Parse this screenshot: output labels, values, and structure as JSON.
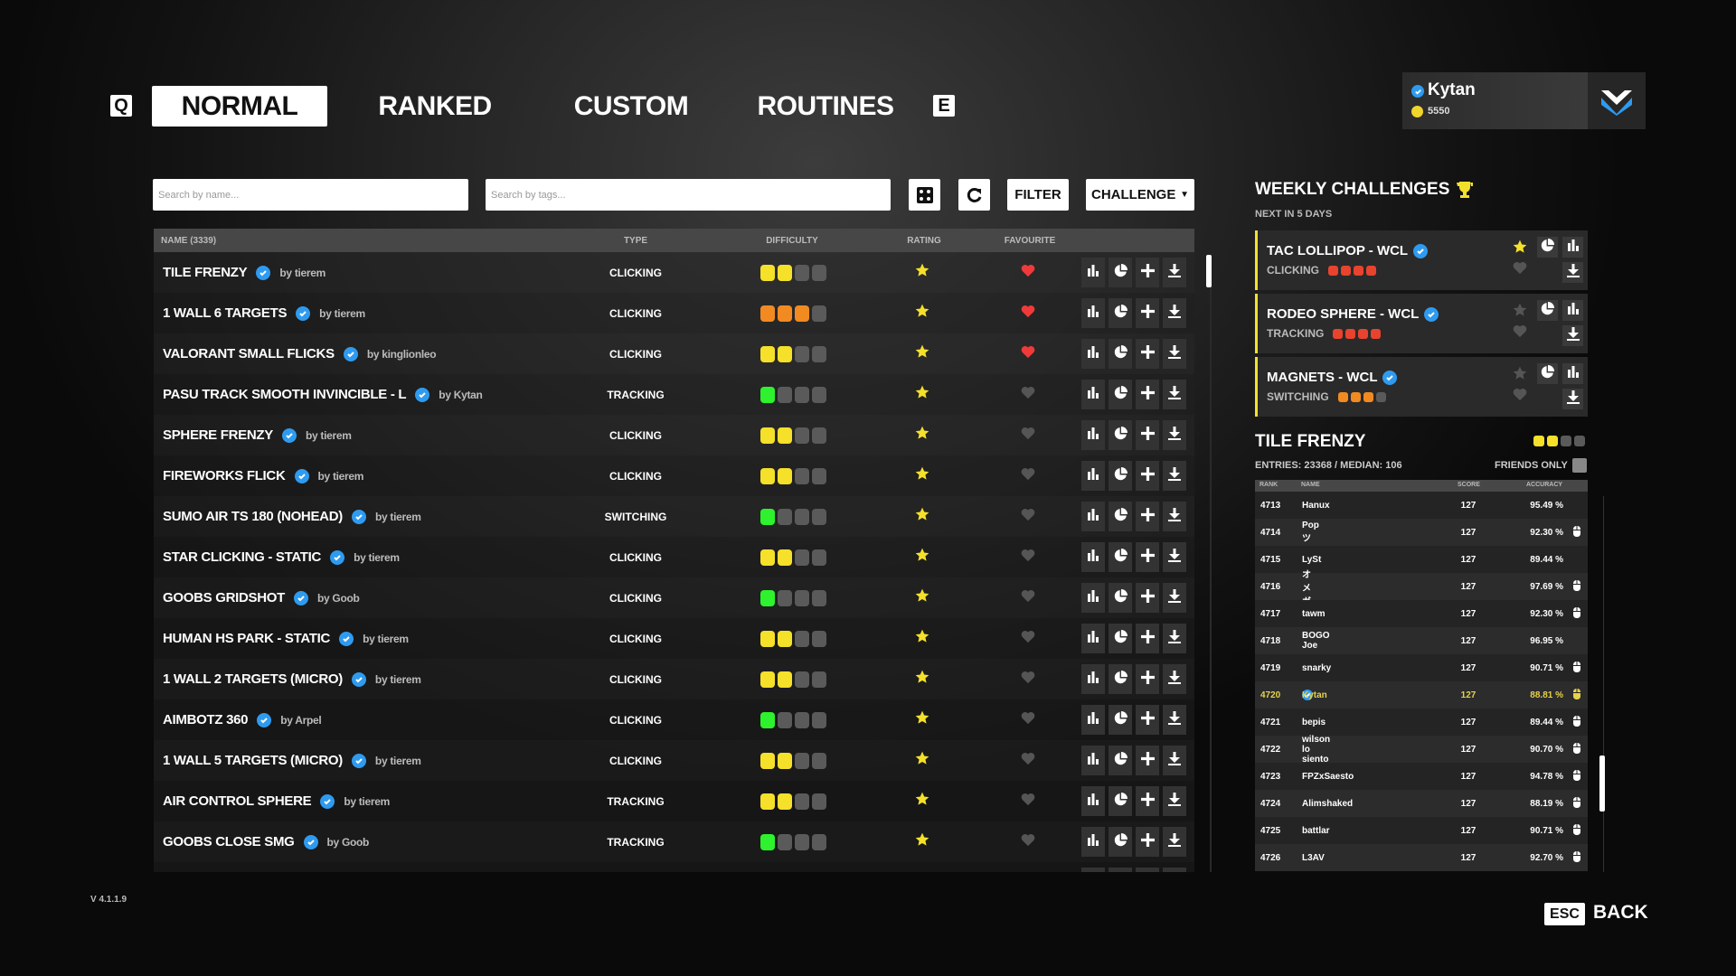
{
  "nav": {
    "prev_key": "Q",
    "next_key": "E",
    "tabs": [
      {
        "label": "NORMAL",
        "active": true
      },
      {
        "label": "RANKED"
      },
      {
        "label": "CUSTOM"
      },
      {
        "label": "ROUTINES"
      }
    ]
  },
  "profile": {
    "username": "Kytan",
    "verified": true,
    "currency": "5550",
    "logo": "aimlabs-style-w-logo"
  },
  "toolbar": {
    "search_name_placeholder": "Search by name...",
    "search_tags_placeholder": "Search by tags...",
    "random_icon": "dice-icon",
    "refresh_icon": "refresh-icon",
    "filter_label": "FILTER",
    "sort_value": "CHALLENGE"
  },
  "table": {
    "columns": {
      "name": "NAME (3339)",
      "type": "TYPE",
      "difficulty": "DIFFICULTY",
      "rating": "RATING",
      "favourite": "FAVOURITE"
    },
    "difficulty_colors": {
      "1": "#2df22d",
      "2": "#f5e02a",
      "3": "#f28a22",
      "4": "#e8432e",
      "empty": "#5a5a5a"
    },
    "rows": [
      {
        "name": "TILE FRENZY",
        "author": "by tierem",
        "type": "CLICKING",
        "difficulty": 2,
        "favourite": true
      },
      {
        "name": "1 WALL 6 TARGETS",
        "author": "by tierem",
        "type": "CLICKING",
        "difficulty": 3,
        "favourite": true
      },
      {
        "name": "VALORANT SMALL FLICKS",
        "author": "by kinglionleo",
        "type": "CLICKING",
        "difficulty": 2,
        "favourite": true
      },
      {
        "name": "PASU TRACK SMOOTH INVINCIBLE - L",
        "author": "by Kytan",
        "type": "TRACKING",
        "difficulty": 1,
        "favourite": false
      },
      {
        "name": "SPHERE FRENZY",
        "author": "by tierem",
        "type": "CLICKING",
        "difficulty": 2,
        "favourite": false
      },
      {
        "name": "FIREWORKS FLICK",
        "author": "by tierem",
        "type": "CLICKING",
        "difficulty": 2,
        "favourite": false
      },
      {
        "name": "SUMO AIR TS 180 (NOHEAD)",
        "author": "by tierem",
        "type": "SWITCHING",
        "difficulty": 1,
        "favourite": false
      },
      {
        "name": "STAR CLICKING - STATIC",
        "author": "by tierem",
        "type": "CLICKING",
        "difficulty": 2,
        "favourite": false
      },
      {
        "name": "GOOBS GRIDSHOT",
        "author": "by Goob",
        "type": "CLICKING",
        "difficulty": 1,
        "favourite": false
      },
      {
        "name": "HUMAN HS PARK - STATIC",
        "author": "by tierem",
        "type": "CLICKING",
        "difficulty": 2,
        "favourite": false
      },
      {
        "name": "1 WALL 2 TARGETS (MICRO)",
        "author": "by tierem",
        "type": "CLICKING",
        "difficulty": 2,
        "favourite": false
      },
      {
        "name": "AIMBOTZ 360",
        "author": "by Arpel",
        "type": "CLICKING",
        "difficulty": 1,
        "favourite": false
      },
      {
        "name": "1 WALL 5 TARGETS (MICRO)",
        "author": "by tierem",
        "type": "CLICKING",
        "difficulty": 2,
        "favourite": false
      },
      {
        "name": "AIR CONTROL SPHERE",
        "author": "by tierem",
        "type": "TRACKING",
        "difficulty": 2,
        "favourite": false
      },
      {
        "name": "GOOBS CLOSE SMG",
        "author": "by Goob",
        "type": "TRACKING",
        "difficulty": 1,
        "favourite": false
      }
    ],
    "row_actions": [
      "stats-icon",
      "pie-chart-icon",
      "plus-icon",
      "download-icon"
    ]
  },
  "weekly": {
    "title": "WEEKLY CHALLENGES",
    "subtitle": "NEXT IN 5 DAYS",
    "challenges": [
      {
        "name": "TAC LOLLIPOP - WCL",
        "type": "CLICKING",
        "difficulty": 4,
        "rated": true
      },
      {
        "name": "RODEO SPHERE - WCL",
        "type": "TRACKING",
        "difficulty": 4,
        "rated": false
      },
      {
        "name": "MAGNETS - WCL",
        "type": "SWITCHING",
        "difficulty": 3,
        "rated": false
      }
    ]
  },
  "leaderboard": {
    "title": "TILE FRENZY",
    "difficulty": 2,
    "stats": "ENTRIES: 23368 / MEDIAN: 106",
    "friends_only_label": "FRIENDS ONLY",
    "friends_only": false,
    "columns": {
      "rank": "RANK",
      "name": "NAME",
      "score": "SCORE",
      "accuracy": "ACCURACY"
    },
    "rows": [
      {
        "rank": "4713",
        "name": "Hanux",
        "score": "127",
        "accuracy": "95.49 %",
        "mouse": false
      },
      {
        "rank": "4714",
        "name": "Popツ",
        "score": "127",
        "accuracy": "92.30 %",
        "mouse": true
      },
      {
        "rank": "4715",
        "name": "LySt",
        "score": "127",
        "accuracy": "89.44 %",
        "mouse": false
      },
      {
        "rank": "4716",
        "name": "オメガ",
        "score": "127",
        "accuracy": "97.69 %",
        "mouse": true
      },
      {
        "rank": "4717",
        "name": "tawm",
        "score": "127",
        "accuracy": "92.30 %",
        "mouse": true
      },
      {
        "rank": "4718",
        "name": "BOGO Joe",
        "score": "127",
        "accuracy": "96.95 %",
        "mouse": false
      },
      {
        "rank": "4719",
        "name": "snarky",
        "score": "127",
        "accuracy": "90.71 %",
        "mouse": true
      },
      {
        "rank": "4720",
        "name": "Kytan",
        "score": "127",
        "accuracy": "88.81 %",
        "mouse": true,
        "current_user": true,
        "verified": true
      },
      {
        "rank": "4721",
        "name": "bepis",
        "score": "127",
        "accuracy": "89.44 %",
        "mouse": true
      },
      {
        "rank": "4722",
        "name": "wilson lo siento",
        "score": "127",
        "accuracy": "90.70 %",
        "mouse": true
      },
      {
        "rank": "4723",
        "name": "FPZxSaesto",
        "score": "127",
        "accuracy": "94.78 %",
        "mouse": true
      },
      {
        "rank": "4724",
        "name": "Alimshaked",
        "score": "127",
        "accuracy": "88.19 %",
        "mouse": true
      },
      {
        "rank": "4725",
        "name": "battlar",
        "score": "127",
        "accuracy": "90.71 %",
        "mouse": true
      },
      {
        "rank": "4726",
        "name": "L3AV",
        "score": "127",
        "accuracy": "92.70 %",
        "mouse": true
      }
    ]
  },
  "footer": {
    "version": "V 4.1.1.9",
    "back_key": "ESC",
    "back_label": "BACK"
  },
  "colors": {
    "accent_yellow": "#f2e12b",
    "verified_blue": "#2e9bf0",
    "favourite_red": "#f03a3a",
    "current_user": "#e6d24a"
  }
}
